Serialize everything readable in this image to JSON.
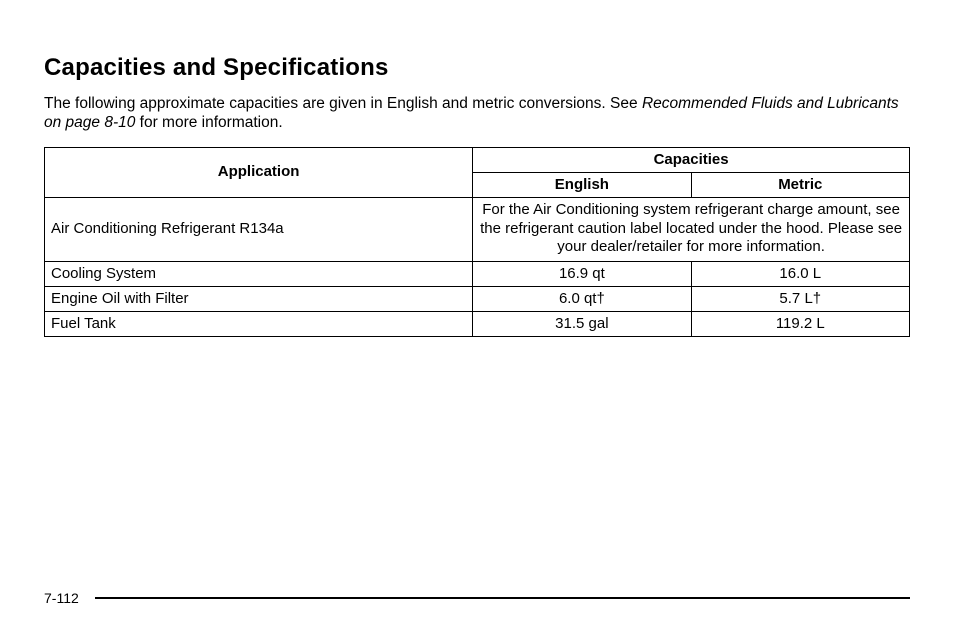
{
  "title": "Capacities and Specifications",
  "intro_lead": "The following approximate capacities are given in English and metric conversions. See ",
  "intro_ref": "Recommended Fluids and Lubricants on page 8-10",
  "intro_tail": " for more information.",
  "headers": {
    "application": "Application",
    "capacities": "Capacities",
    "english": "English",
    "metric": "Metric"
  },
  "rows": {
    "ac": {
      "app": "Air Conditioning Refrigerant R134a",
      "note": "For the Air Conditioning system refrigerant charge amount, see the refrigerant caution label located under the hood. Please see your dealer/retailer for more information."
    },
    "cooling": {
      "app": "Cooling System",
      "english": "16.9 qt",
      "metric": "16.0 L"
    },
    "oil": {
      "app": "Engine Oil with Filter",
      "english": "6.0 qt†",
      "metric": "5.7 L†"
    },
    "fuel": {
      "app": "Fuel Tank",
      "english": "31.5 gal",
      "metric": "119.2 L"
    }
  },
  "page_number": "7-112"
}
